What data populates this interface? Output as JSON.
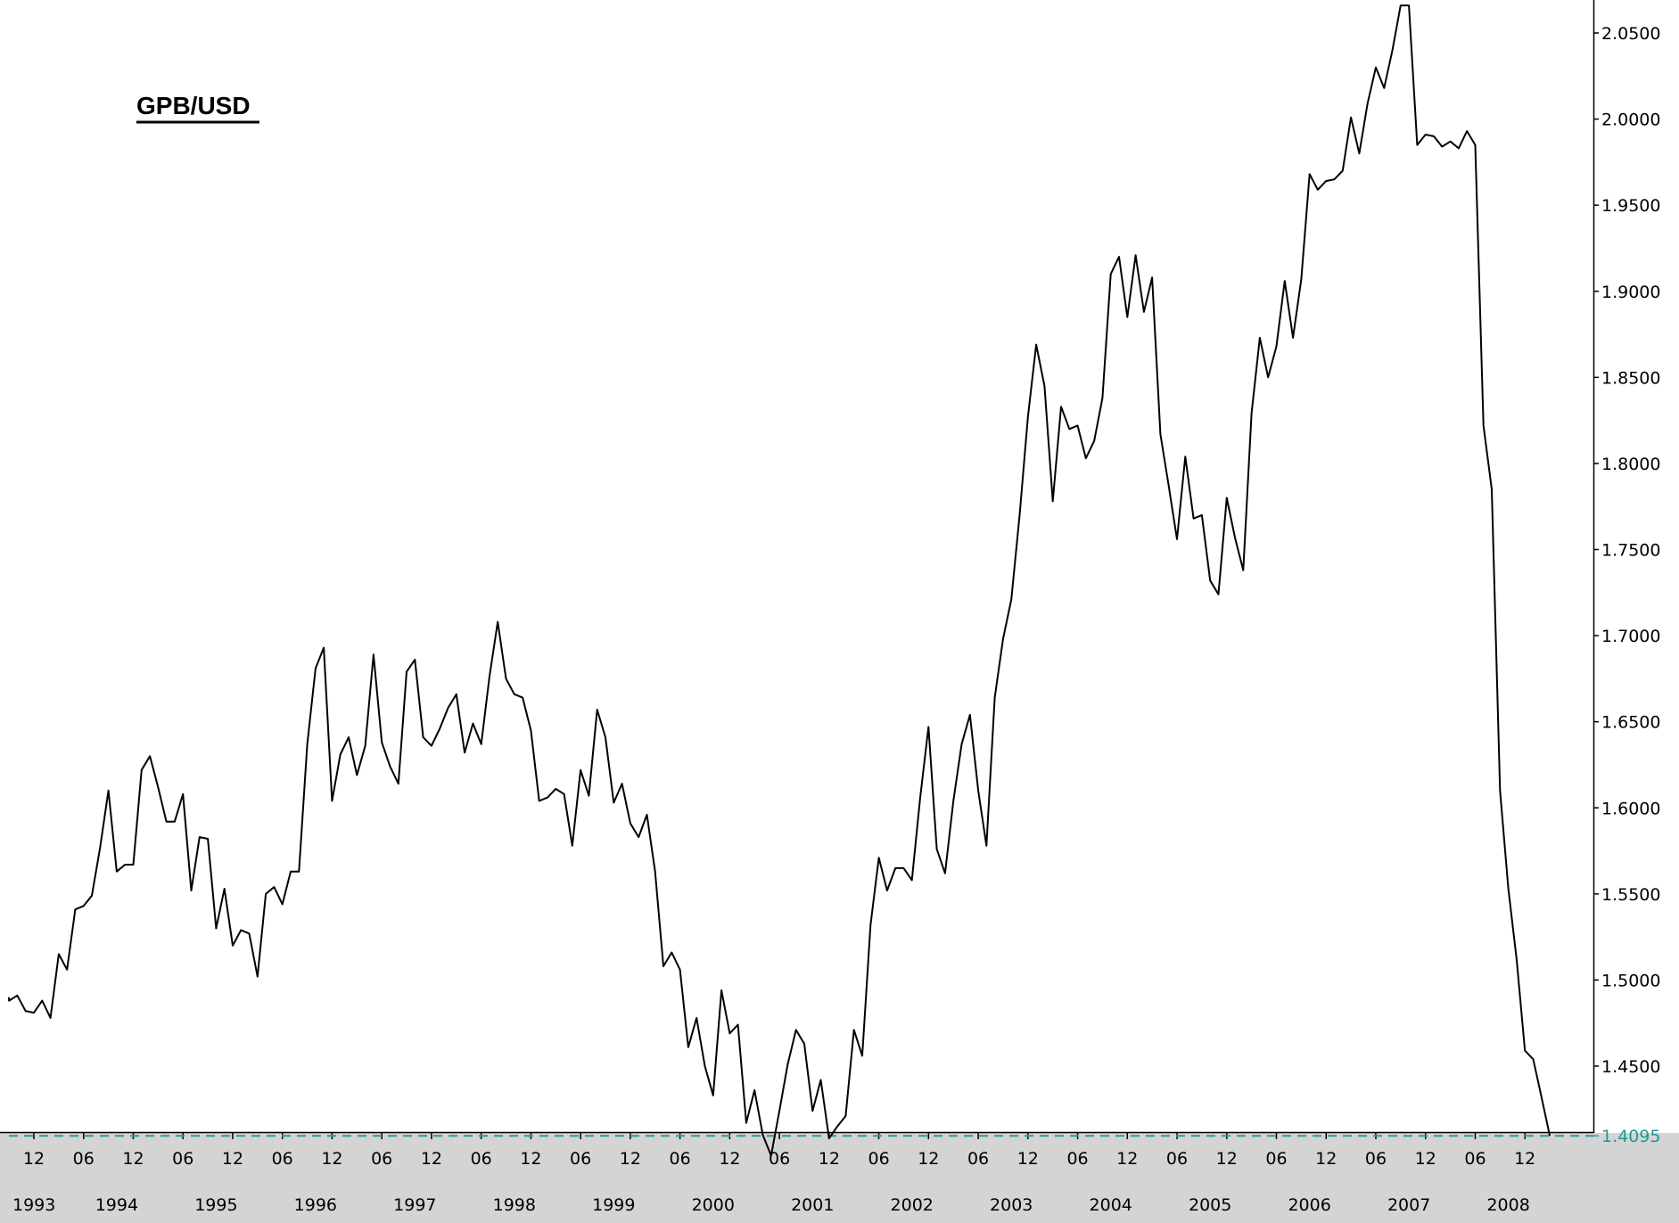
{
  "chart_data": {
    "type": "line",
    "title": "GPB/USD",
    "xlabel": "",
    "ylabel": "",
    "ylim": [
      1.39,
      2.065
    ],
    "xlim": [
      "1993-08",
      "2009-01"
    ],
    "grid": false,
    "legend": "none",
    "y_ticks": [
      "1.4500",
      "1.5000",
      "1.5500",
      "1.6000",
      "1.6500",
      "1.7000",
      "1.7500",
      "1.8000",
      "1.8500",
      "1.9000",
      "1.9500",
      "2.0000",
      "2.0500"
    ],
    "current_value": {
      "label": "1.4095",
      "value": 1.4095
    },
    "x_month_ticks": [
      {
        "label": "12",
        "date": "1993-12"
      },
      {
        "label": "06",
        "date": "1994-06"
      },
      {
        "label": "12",
        "date": "1994-12"
      },
      {
        "label": "06",
        "date": "1995-06"
      },
      {
        "label": "12",
        "date": "1995-12"
      },
      {
        "label": "06",
        "date": "1996-06"
      },
      {
        "label": "12",
        "date": "1996-12"
      },
      {
        "label": "06",
        "date": "1997-06"
      },
      {
        "label": "12",
        "date": "1997-12"
      },
      {
        "label": "06",
        "date": "1998-06"
      },
      {
        "label": "12",
        "date": "1998-12"
      },
      {
        "label": "06",
        "date": "1999-06"
      },
      {
        "label": "12",
        "date": "1999-12"
      },
      {
        "label": "06",
        "date": "2000-06"
      },
      {
        "label": "12",
        "date": "2000-12"
      },
      {
        "label": "06",
        "date": "2001-06"
      },
      {
        "label": "12",
        "date": "2001-12"
      },
      {
        "label": "06",
        "date": "2002-06"
      },
      {
        "label": "12",
        "date": "2002-12"
      },
      {
        "label": "06",
        "date": "2003-06"
      },
      {
        "label": "12",
        "date": "2003-12"
      },
      {
        "label": "06",
        "date": "2004-06"
      },
      {
        "label": "12",
        "date": "2004-12"
      },
      {
        "label": "06",
        "date": "2005-06"
      },
      {
        "label": "12",
        "date": "2005-12"
      },
      {
        "label": "06",
        "date": "2006-06"
      },
      {
        "label": "12",
        "date": "2006-12"
      },
      {
        "label": "06",
        "date": "2007-06"
      },
      {
        "label": "12",
        "date": "2007-12"
      },
      {
        "label": "06",
        "date": "2008-06"
      },
      {
        "label": "12",
        "date": "2008-12"
      }
    ],
    "x_year_labels": [
      {
        "label": "1993",
        "date": "1993-08"
      },
      {
        "label": "1994",
        "date": "1994-10"
      },
      {
        "label": "1995",
        "date": "1995-10"
      },
      {
        "label": "1996",
        "date": "1996-10"
      },
      {
        "label": "1997",
        "date": "1997-10"
      },
      {
        "label": "1998",
        "date": "1998-10"
      },
      {
        "label": "1999",
        "date": "1999-10"
      },
      {
        "label": "2000",
        "date": "2000-10"
      },
      {
        "label": "2001",
        "date": "2001-10"
      },
      {
        "label": "2002",
        "date": "2002-10"
      },
      {
        "label": "2003",
        "date": "2003-10"
      },
      {
        "label": "2004",
        "date": "2004-10"
      },
      {
        "label": "2005",
        "date": "2005-10"
      },
      {
        "label": "2006",
        "date": "2006-10"
      },
      {
        "label": "2007",
        "date": "2007-10"
      },
      {
        "label": "2008",
        "date": "2008-10"
      }
    ],
    "series": [
      {
        "start": "1993-08",
        "frequency": "monthly",
        "values": [
          1.49,
          1.488,
          1.491,
          1.482,
          1.481,
          1.488,
          1.478,
          1.515,
          1.506,
          1.541,
          1.543,
          1.549,
          1.577,
          1.61,
          1.563,
          1.567,
          1.567,
          1.622,
          1.63,
          1.612,
          1.592,
          1.592,
          1.608,
          1.552,
          1.583,
          1.582,
          1.53,
          1.553,
          1.52,
          1.529,
          1.527,
          1.502,
          1.55,
          1.554,
          1.544,
          1.563,
          1.563,
          1.637,
          1.681,
          1.693,
          1.604,
          1.631,
          1.641,
          1.619,
          1.636,
          1.689,
          1.638,
          1.624,
          1.614,
          1.679,
          1.686,
          1.641,
          1.636,
          1.646,
          1.658,
          1.666,
          1.632,
          1.649,
          1.637,
          1.676,
          1.708,
          1.675,
          1.666,
          1.664,
          1.645,
          1.604,
          1.606,
          1.611,
          1.608,
          1.578,
          1.622,
          1.607,
          1.657,
          1.641,
          1.603,
          1.614,
          1.591,
          1.583,
          1.596,
          1.563,
          1.508,
          1.516,
          1.506,
          1.461,
          1.478,
          1.45,
          1.433,
          1.494,
          1.469,
          1.474,
          1.417,
          1.436,
          1.41,
          1.398,
          1.424,
          1.451,
          1.471,
          1.463,
          1.424,
          1.442,
          1.408,
          1.415,
          1.421,
          1.471,
          1.456,
          1.532,
          1.571,
          1.552,
          1.565,
          1.565,
          1.558,
          1.606,
          1.647,
          1.576,
          1.562,
          1.604,
          1.637,
          1.654,
          1.61,
          1.578,
          1.664,
          1.698,
          1.721,
          1.77,
          1.827,
          1.869,
          1.845,
          1.778,
          1.833,
          1.82,
          1.822,
          1.803,
          1.813,
          1.838,
          1.91,
          1.92,
          1.885,
          1.921,
          1.888,
          1.908,
          1.817,
          1.787,
          1.756,
          1.804,
          1.768,
          1.77,
          1.732,
          1.724,
          1.78,
          1.757,
          1.738,
          1.829,
          1.873,
          1.85,
          1.868,
          1.906,
          1.873,
          1.907,
          1.968,
          1.959,
          1.964,
          1.965,
          1.97,
          2.001,
          1.98,
          2.009,
          2.03,
          2.018,
          2.04,
          2.066,
          2.066,
          1.985,
          1.991,
          1.99,
          1.984,
          1.987,
          1.983,
          1.993,
          1.985,
          1.822,
          1.785,
          1.61,
          1.553,
          1.512,
          1.459,
          1.454,
          1.432,
          1.4095
        ]
      }
    ]
  }
}
